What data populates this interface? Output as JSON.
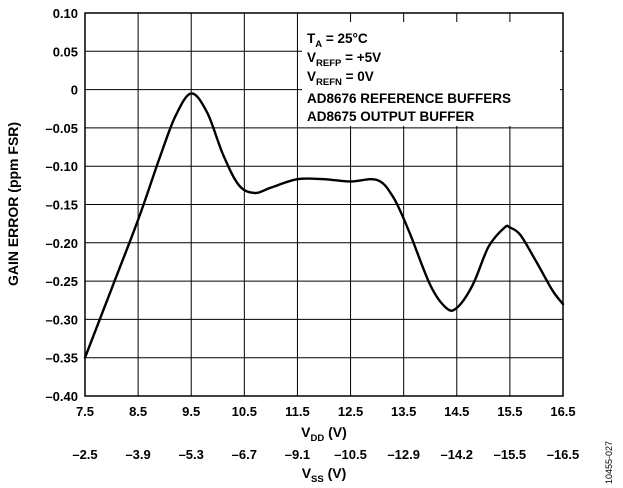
{
  "chart_data": {
    "type": "line",
    "x_primary": {
      "label_main": "V",
      "label_sub": "DD",
      "label_unit": " (V)",
      "ticks": [
        "7.5",
        "8.5",
        "9.5",
        "10.5",
        "11.5",
        "12.5",
        "13.5",
        "14.5",
        "15.5",
        "16.5"
      ],
      "range": [
        7.5,
        16.5
      ]
    },
    "x_secondary": {
      "label_main": "V",
      "label_sub": "SS",
      "label_unit": " (V)",
      "ticks": [
        "–2.5",
        "–3.9",
        "–5.3",
        "–6.7",
        "–9.1",
        "–10.5",
        "–12.9",
        "–14.2",
        "–15.5",
        "–16.5"
      ]
    },
    "y_axis": {
      "label": "GAIN ERROR (ppm FSR)",
      "ticks": [
        "0.10",
        "0.05",
        "0",
        "–0.05",
        "–0.10",
        "–0.15",
        "–0.20",
        "–0.25",
        "–0.30",
        "–0.35",
        "–0.40"
      ],
      "range": [
        -0.4,
        0.1
      ]
    },
    "grid": true,
    "series": [
      {
        "x": [
          7.5,
          8.0,
          8.5,
          8.9,
          9.2,
          9.5,
          9.8,
          10.1,
          10.4,
          10.7,
          11.0,
          11.5,
          12.0,
          12.5,
          13.0,
          13.3,
          13.6,
          14.0,
          14.3,
          14.5,
          14.8,
          15.1,
          15.4,
          15.5,
          15.7,
          16.0,
          16.3,
          16.5
        ],
        "y": [
          -0.35,
          -0.26,
          -0.17,
          -0.09,
          -0.035,
          -0.005,
          -0.03,
          -0.085,
          -0.125,
          -0.135,
          -0.128,
          -0.117,
          -0.117,
          -0.12,
          -0.118,
          -0.14,
          -0.185,
          -0.255,
          -0.285,
          -0.285,
          -0.255,
          -0.205,
          -0.18,
          -0.18,
          -0.19,
          -0.225,
          -0.262,
          -0.28
        ]
      }
    ],
    "annotations": {
      "line1": {
        "main": "T",
        "sub": "A",
        "rest": " = 25°C"
      },
      "line2": {
        "main": "V",
        "sub": "REFP",
        "rest": " = +5V"
      },
      "line3": {
        "main": "V",
        "sub": "REFN",
        "rest": " = 0V"
      },
      "line4": "AD8676 REFERENCE BUFFERS",
      "line5": "AD8675 OUTPUT BUFFER"
    },
    "figure_id": "10455-027"
  }
}
